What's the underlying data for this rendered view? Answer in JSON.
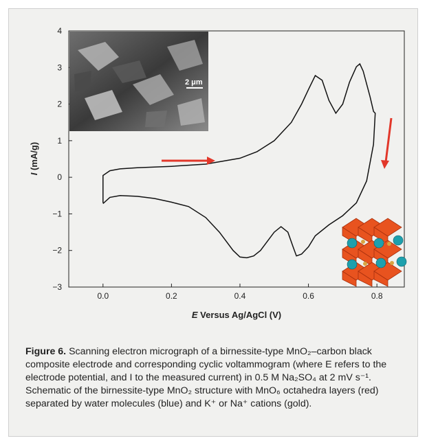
{
  "chart_data": {
    "type": "line",
    "xlabel_italic": "E",
    "xlabel_rest": " Versus Ag/AgCl (V)",
    "ylabel_italic": "I",
    "ylabel_rest": " (mA/g)",
    "xlim": [
      -0.1,
      0.88
    ],
    "ylim": [
      -3,
      4
    ],
    "xticks": [
      0.0,
      0.2,
      0.4,
      0.6,
      0.8
    ],
    "xtick_labels": [
      "0.0",
      "0.2",
      "0.4",
      "0.6",
      "0.8"
    ],
    "yticks": [
      -3,
      -2,
      -1,
      0,
      1,
      2,
      3,
      4
    ],
    "ytick_labels": [
      "−3",
      "−2",
      "−1",
      "0",
      "1",
      "2",
      "3",
      "4"
    ],
    "series": [
      {
        "x": [
          0.0,
          0.0,
          0.02,
          0.05,
          0.1,
          0.2,
          0.3,
          0.4,
          0.45,
          0.5,
          0.55,
          0.58,
          0.6,
          0.62,
          0.64,
          0.66,
          0.68,
          0.7,
          0.72,
          0.74,
          0.75,
          0.76,
          0.78,
          0.79,
          0.795,
          0.79,
          0.77,
          0.74,
          0.7,
          0.66,
          0.62,
          0.6,
          0.58,
          0.565,
          0.555,
          0.54,
          0.52,
          0.5,
          0.48,
          0.46,
          0.44,
          0.42,
          0.4,
          0.38,
          0.36,
          0.34,
          0.3,
          0.25,
          0.2,
          0.15,
          0.1,
          0.05,
          0.02,
          0.0
        ],
        "y": [
          -0.7,
          0.05,
          0.18,
          0.23,
          0.26,
          0.3,
          0.36,
          0.52,
          0.7,
          1.0,
          1.5,
          2.0,
          2.4,
          2.78,
          2.65,
          2.1,
          1.75,
          2.0,
          2.6,
          3.02,
          3.1,
          2.9,
          2.2,
          1.8,
          1.75,
          0.9,
          -0.1,
          -0.7,
          -1.05,
          -1.3,
          -1.6,
          -1.9,
          -2.1,
          -2.15,
          -1.9,
          -1.5,
          -1.35,
          -1.5,
          -1.75,
          -2.0,
          -2.15,
          -2.2,
          -2.18,
          -2.0,
          -1.75,
          -1.5,
          -1.1,
          -0.8,
          -0.68,
          -0.58,
          -0.52,
          -0.5,
          -0.55,
          -0.72
        ]
      }
    ],
    "annotations": {
      "sem_scale_label": "2 μm"
    }
  },
  "colors": {
    "panel_background": "#f1f1ef",
    "curve": "#111111",
    "arrow": "#e2372a",
    "octahedra": "#e8531f",
    "water_molecules": "#1ea0ad",
    "cations": "#d9a441"
  },
  "caption": {
    "lead": "Figure 6.",
    "text": " Scanning electron micrograph of a birnessite-type MnO₂–carbon black composite electrode and corresponding cyclic voltammogram (where E refers to the electrode potential, and I to the measured current) in 0.5 M Na₂SO₄ at 2 mV s⁻¹. Schematic of the birnessite-type MnO₂ structure with MnO₆ octahedra layers (red) separated by water molecules (blue) and K⁺ or Na⁺ cations (gold)."
  }
}
